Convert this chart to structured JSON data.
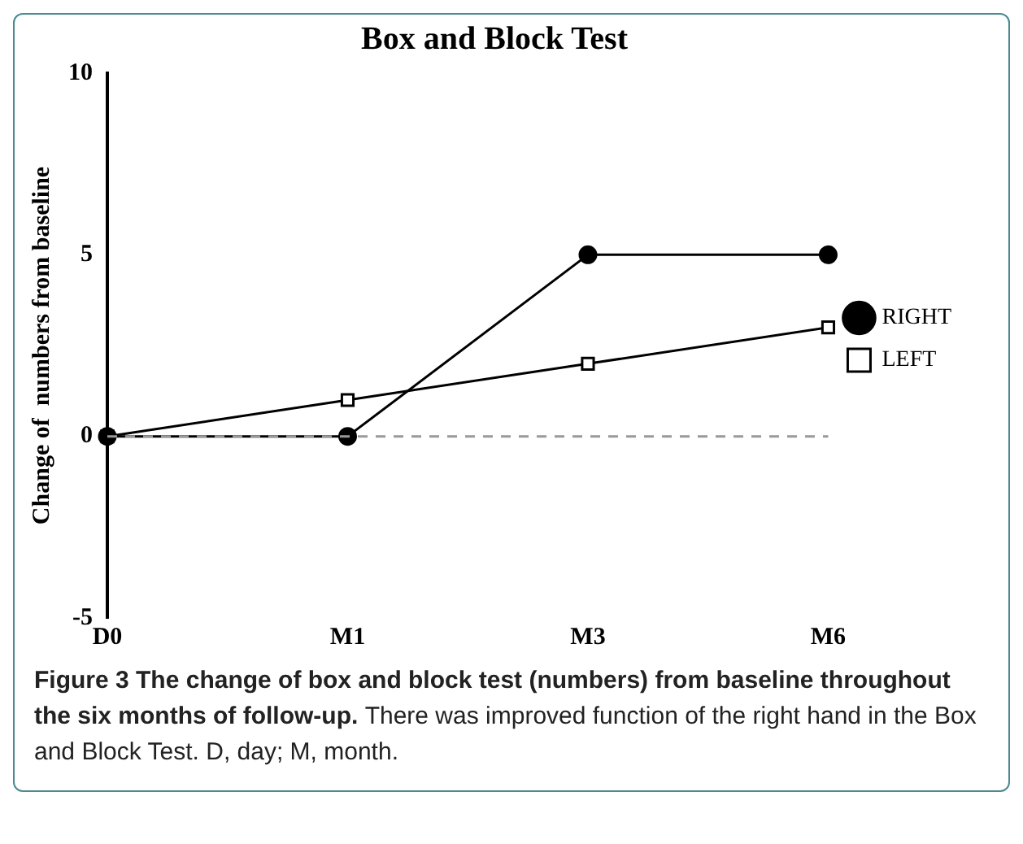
{
  "chart_data": {
    "type": "line",
    "title": "Box and Block Test",
    "ylabel": "Change of  numbers from baseline",
    "categories": [
      "D0",
      "M1",
      "M3",
      "M6"
    ],
    "ylim": [
      -5,
      10
    ],
    "yticks": [
      -5,
      0,
      5,
      10
    ],
    "series": [
      {
        "name": "RIGHT",
        "color": "#000000",
        "values": [
          0,
          0,
          5,
          5
        ],
        "marker": "circle"
      },
      {
        "name": "LEFT",
        "color": "#000000",
        "values": [
          0,
          1,
          2,
          3
        ],
        "marker": "square"
      }
    ],
    "ref_lines": [
      {
        "axis": "y",
        "value": 0,
        "color": "#999999",
        "line_style": "dashed"
      }
    ],
    "legend": "right",
    "grid": false,
    "line_style": "solid",
    "annotations": [
      "Figure 3 The change of box and block test (numbers) from baseline throughout the six months of follow-up.",
      "There was improved function of the right hand in the Box and Block Test. D, day; M, month."
    ]
  }
}
